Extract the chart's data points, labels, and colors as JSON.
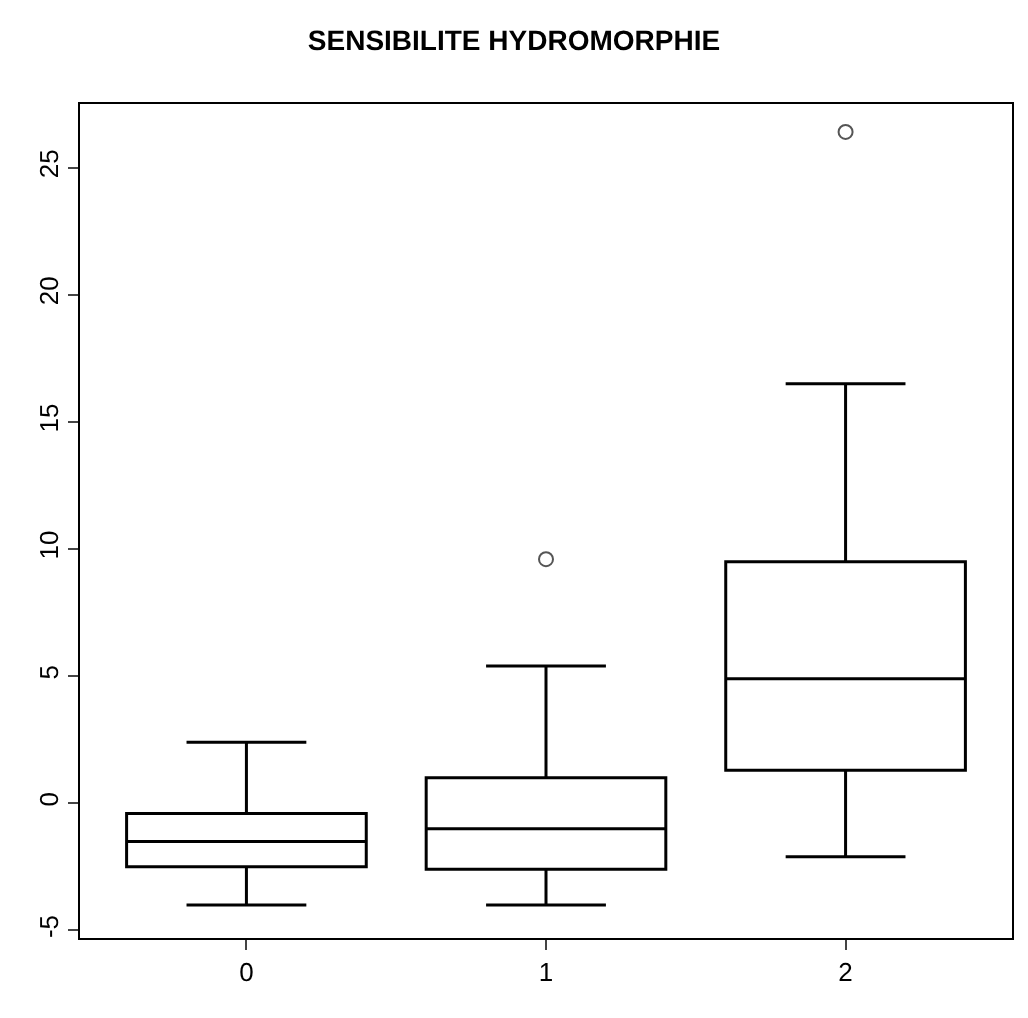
{
  "chart_data": {
    "type": "box",
    "title": "SENSIBILITE HYDROMORPHIE",
    "categories": [
      "0",
      "1",
      "2"
    ],
    "boxes": [
      {
        "low": -4.0,
        "q1": -2.5,
        "median": -1.5,
        "q3": -0.4,
        "high": 2.4
      },
      {
        "low": -4.0,
        "q1": -2.6,
        "median": -1.0,
        "q3": 1.0,
        "high": 5.4,
        "outliers": [
          9.6
        ]
      },
      {
        "low": -2.1,
        "q1": 1.3,
        "median": 4.9,
        "q3": 9.5,
        "high": 16.5,
        "outliers": [
          26.4
        ]
      }
    ],
    "color": "#000000",
    "ylim": [
      -5.3,
      27.5
    ],
    "yticks": [
      -5,
      0,
      5,
      10,
      15,
      20,
      25
    ]
  }
}
